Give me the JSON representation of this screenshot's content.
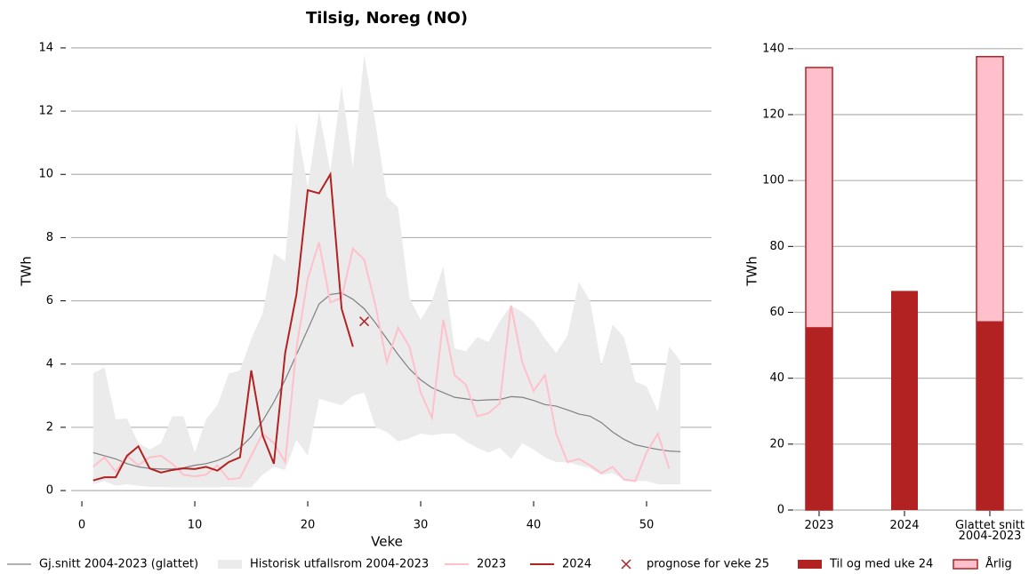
{
  "chart_data": [
    {
      "type": "line",
      "title": "Tilsig, Noreg (NO)",
      "x_label": "Veke",
      "y_label": "TWh",
      "x": [
        1,
        2,
        3,
        4,
        5,
        6,
        7,
        8,
        9,
        10,
        11,
        12,
        13,
        14,
        15,
        16,
        17,
        18,
        19,
        20,
        21,
        22,
        23,
        24,
        25,
        26,
        27,
        28,
        29,
        30,
        31,
        32,
        33,
        34,
        35,
        36,
        37,
        38,
        39,
        40,
        41,
        42,
        43,
        44,
        45,
        46,
        47,
        48,
        49,
        50,
        51,
        52,
        53
      ],
      "xlim": [
        -0.95,
        55.75
      ],
      "xticks": [
        0,
        10,
        20,
        30,
        40,
        50
      ],
      "ylim": [
        -0.7,
        14.7
      ],
      "yticks": [
        0,
        2,
        4,
        6,
        8,
        10,
        12,
        14
      ],
      "grid": true,
      "series": [
        {
          "name": "Gj.snitt 2004-2023 (glattet)",
          "color": "#808080",
          "values": [
            1.2,
            1.1,
            1.0,
            0.85,
            0.75,
            0.7,
            0.68,
            0.68,
            0.72,
            0.8,
            0.85,
            0.95,
            1.1,
            1.35,
            1.7,
            2.2,
            2.8,
            3.5,
            4.3,
            5.1,
            5.9,
            6.2,
            6.25,
            6.05,
            5.75,
            5.3,
            4.8,
            4.3,
            3.85,
            3.5,
            3.25,
            3.1,
            2.95,
            2.9,
            2.85,
            2.87,
            2.88,
            2.97,
            2.95,
            2.85,
            2.72,
            2.67,
            2.55,
            2.42,
            2.35,
            2.15,
            1.85,
            1.62,
            1.45,
            1.37,
            1.3,
            1.25,
            1.23
          ]
        },
        {
          "name": "Historisk utfallsrom 2004-2023",
          "color": "#ebebeb",
          "type": "band",
          "lower": [
            0.2,
            0.3,
            0.15,
            0.2,
            0.15,
            0.12,
            0.12,
            0.1,
            0.1,
            0.1,
            0.1,
            0.1,
            0.12,
            0.1,
            0.1,
            0.5,
            0.75,
            0.65,
            1.6,
            1.1,
            2.9,
            2.8,
            2.7,
            3.0,
            3.1,
            2.0,
            1.85,
            1.55,
            1.65,
            1.8,
            1.75,
            1.8,
            1.8,
            1.55,
            1.35,
            1.2,
            1.35,
            1.0,
            1.5,
            1.3,
            1.05,
            0.9,
            0.9,
            0.8,
            0.7,
            0.5,
            0.55,
            0.35,
            0.3,
            0.3,
            0.2,
            0.2,
            0.2
          ],
          "upper": [
            3.7,
            3.9,
            2.25,
            2.28,
            1.5,
            1.3,
            1.5,
            2.35,
            2.35,
            1.2,
            2.25,
            2.7,
            3.7,
            3.8,
            4.8,
            5.6,
            7.5,
            7.25,
            11.6,
            9.6,
            12.0,
            10.1,
            12.8,
            10.2,
            13.8,
            11.6,
            9.3,
            8.95,
            6.1,
            5.4,
            6.0,
            7.1,
            4.5,
            4.4,
            4.85,
            4.7,
            5.35,
            5.85,
            5.65,
            5.35,
            4.8,
            4.35,
            4.9,
            6.6,
            6.0,
            3.95,
            5.25,
            4.85,
            3.45,
            3.3,
            2.5,
            4.55,
            4.1
          ]
        },
        {
          "name": "2023",
          "color": "#ffc0cb",
          "values": [
            0.75,
            1.05,
            0.6,
            1.1,
            0.8,
            1.05,
            1.1,
            0.85,
            0.5,
            0.45,
            0.5,
            0.8,
            0.35,
            0.4,
            1.1,
            1.8,
            1.5,
            0.9,
            4.5,
            6.7,
            7.85,
            5.95,
            6.1,
            7.65,
            7.3,
            5.85,
            4.05,
            5.15,
            4.55,
            3.1,
            2.3,
            5.4,
            3.65,
            3.35,
            2.35,
            2.45,
            2.75,
            5.85,
            4.05,
            3.15,
            3.65,
            1.8,
            0.9,
            1.0,
            0.8,
            0.55,
            0.75,
            0.35,
            0.3,
            1.2,
            1.8,
            0.7,
            null
          ]
        },
        {
          "name": "2024",
          "color": "#b22222",
          "values": [
            0.32,
            0.42,
            0.42,
            1.1,
            1.4,
            0.7,
            0.57,
            0.65,
            0.7,
            0.68,
            0.75,
            0.63,
            0.9,
            1.05,
            3.8,
            1.75,
            0.85,
            4.35,
            6.2,
            9.5,
            9.4,
            10.0,
            5.75,
            4.55,
            null,
            null,
            null,
            null,
            null,
            null,
            null,
            null,
            null,
            null,
            null,
            null,
            null,
            null,
            null,
            null,
            null,
            null,
            null,
            null,
            null,
            null,
            null,
            null,
            null,
            null,
            null,
            null,
            null
          ]
        },
        {
          "name": "prognose for veke 25",
          "color": "#b22222",
          "type": "marker",
          "values": [
            null,
            null,
            null,
            null,
            null,
            null,
            null,
            null,
            null,
            null,
            null,
            null,
            null,
            null,
            null,
            null,
            null,
            null,
            null,
            null,
            null,
            null,
            null,
            null,
            5.35,
            null,
            null,
            null,
            null,
            null,
            null,
            null,
            null,
            null,
            null,
            null,
            null,
            null,
            null,
            null,
            null,
            null,
            null,
            null,
            null,
            null,
            null,
            null,
            null,
            null,
            null,
            null,
            null
          ]
        }
      ]
    },
    {
      "type": "bar",
      "y_label": "TWh",
      "overlay": true,
      "categories": [
        "2023",
        "2024",
        "Glattet snitt\n2004-2023"
      ],
      "ylim": [
        0,
        144
      ],
      "yticks": [
        0,
        20,
        40,
        60,
        80,
        100,
        120,
        140
      ],
      "grid": true,
      "series": [
        {
          "name": "Til og med uke 24",
          "color": "#b22222",
          "values": [
            55.5,
            66.5,
            57.3
          ]
        },
        {
          "name": "Årlig",
          "color": "#ffc0cb",
          "edgecolor": "#b22222",
          "values": [
            134.3,
            null,
            137.6
          ]
        }
      ]
    }
  ]
}
